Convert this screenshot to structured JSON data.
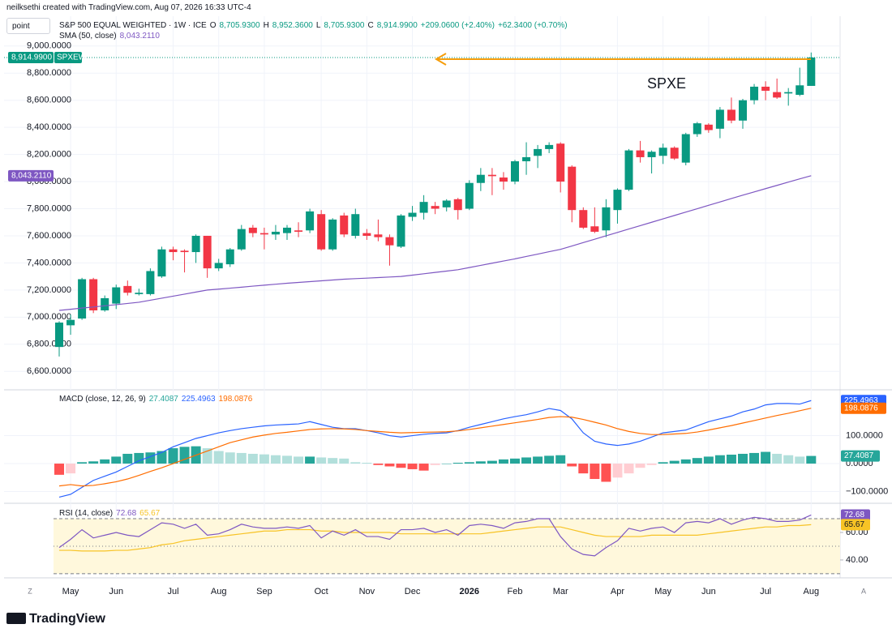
{
  "header": {
    "credit": "neilksethi created with TradingView.com, Aug 07, 2026 16:33 UTC-4",
    "button": "point",
    "logo": "TradingView",
    "left_corner": "Z",
    "right_corner": "A"
  },
  "chart_data": [
    {
      "type": "candlestick",
      "title": "S&P 500 EQUAL WEIGHTED · 1W · ICE",
      "symbol": "SPXEW",
      "annotation": "SPXE",
      "legend": [
        {
          "label": "O",
          "value": "8,705.9300"
        },
        {
          "label": "H",
          "value": "8,952.3600"
        },
        {
          "label": "L",
          "value": "8,705.9300"
        },
        {
          "label": "C",
          "value": "8,914.9900"
        },
        {
          "label": "",
          "value": "+209.0600 (+2.40%)"
        },
        {
          "label": "",
          "value": "+62.3400 (+0.70%)"
        }
      ],
      "categories": [
        null,
        "May",
        null,
        null,
        null,
        "Jun",
        null,
        null,
        null,
        null,
        "Jul",
        null,
        null,
        null,
        "Aug",
        null,
        null,
        null,
        "Sep",
        null,
        null,
        null,
        null,
        "Oct",
        null,
        null,
        null,
        "Nov",
        null,
        null,
        null,
        "Dec",
        null,
        null,
        null,
        null,
        "2026",
        null,
        null,
        null,
        "Feb",
        null,
        null,
        null,
        "Mar",
        null,
        null,
        null,
        null,
        "Apr",
        null,
        null,
        null,
        "May",
        null,
        null,
        null,
        "Jun",
        null,
        null,
        null,
        null,
        "Jul",
        null,
        null,
        null,
        "Aug"
      ],
      "open": [
        6780,
        6940,
        6990,
        7280,
        7050,
        7100,
        7230,
        7170,
        7170,
        7300,
        7500,
        7490,
        7480,
        7600,
        7360,
        7390,
        7500,
        7660,
        7620,
        7610,
        7620,
        7640,
        7640,
        7760,
        7500,
        7750,
        7600,
        7620,
        7610,
        7590,
        7520,
        7740,
        7770,
        7820,
        7810,
        7870,
        7800,
        7990,
        8050,
        8030,
        8000,
        8150,
        8190,
        8240,
        8280,
        8110,
        7790,
        7670,
        7640,
        7790,
        7940,
        8230,
        8180,
        8190,
        8250,
        8140,
        8350,
        8420,
        8390,
        8530,
        8450,
        8600,
        8700,
        8660,
        8650,
        8640,
        8705.93
      ],
      "high": [
        6970,
        7020,
        7290,
        7290,
        7160,
        7240,
        7270,
        7210,
        7360,
        7520,
        7520,
        7500,
        7610,
        7600,
        7430,
        7510,
        7680,
        7680,
        7660,
        7680,
        7680,
        7700,
        7800,
        7790,
        7730,
        7770,
        7800,
        7650,
        7720,
        7610,
        7760,
        7820,
        7900,
        7850,
        7870,
        7880,
        8010,
        8100,
        8100,
        8070,
        8160,
        8290,
        8270,
        8290,
        8290,
        8120,
        7810,
        7810,
        7870,
        7950,
        8240,
        8300,
        8230,
        8280,
        8260,
        8360,
        8440,
        8430,
        8550,
        8620,
        8610,
        8720,
        8740,
        8760,
        8690,
        8840,
        8952.36
      ],
      "low": [
        6710,
        6870,
        6980,
        7030,
        7040,
        7060,
        7160,
        7160,
        7160,
        7290,
        7420,
        7330,
        7400,
        7290,
        7340,
        7370,
        7490,
        7590,
        7500,
        7570,
        7570,
        7590,
        7620,
        7490,
        7490,
        7590,
        7580,
        7570,
        7560,
        7380,
        7510,
        7710,
        7720,
        7760,
        7780,
        7720,
        7790,
        7930,
        7900,
        7940,
        7980,
        8050,
        8100,
        8210,
        7920,
        7700,
        7650,
        7620,
        7590,
        7690,
        7930,
        8140,
        8060,
        8130,
        8160,
        8120,
        8330,
        8360,
        8320,
        8430,
        8390,
        8570,
        8600,
        8610,
        8560,
        8630,
        8705.93
      ],
      "close": [
        6960,
        6980,
        7280,
        7050,
        7140,
        7220,
        7180,
        7180,
        7340,
        7500,
        7480,
        7480,
        7600,
        7360,
        7400,
        7500,
        7650,
        7620,
        7610,
        7630,
        7660,
        7630,
        7780,
        7500,
        7720,
        7610,
        7760,
        7600,
        7590,
        7530,
        7750,
        7770,
        7850,
        7800,
        7860,
        7790,
        7990,
        8050,
        8040,
        8000,
        8150,
        8180,
        8240,
        8270,
        8000,
        7790,
        7660,
        7630,
        7810,
        7940,
        8230,
        8180,
        8220,
        8250,
        8170,
        8350,
        8430,
        8380,
        8530,
        8450,
        8600,
        8700,
        8670,
        8620,
        8660,
        8710,
        8914.99
      ],
      "up_color": "#089981",
      "down_color": "#f23645",
      "series": [
        {
          "name": "SMA (50, close)",
          "label": "8,043.2110",
          "color": "#7e57c2",
          "values": [
            7050,
            7058,
            7067,
            7075,
            7084,
            7092,
            7101,
            7110,
            7125,
            7140,
            7155,
            7170,
            7185,
            7200,
            7207,
            7214,
            7221,
            7229,
            7236,
            7243,
            7250,
            7256,
            7262,
            7268,
            7274,
            7280,
            7284,
            7288,
            7292,
            7296,
            7300,
            7310,
            7320,
            7330,
            7340,
            7350,
            7366,
            7382,
            7398,
            7414,
            7430,
            7448,
            7465,
            7483,
            7500,
            7525,
            7550,
            7575,
            7600,
            7625,
            7650,
            7675,
            7700,
            7725,
            7750,
            7775,
            7800,
            7825,
            7850,
            7875,
            7900,
            7924,
            7948,
            7972,
            7996,
            8020,
            8043.211
          ]
        }
      ],
      "ylim": [
        6470,
        9190
      ],
      "yticks": [
        {
          "value": 6600,
          "label": "6,600.0000"
        },
        {
          "value": 6800,
          "label": "6,800.0000"
        },
        {
          "value": 7000,
          "label": "7,000.0000"
        },
        {
          "value": 7200,
          "label": "7,200.0000"
        },
        {
          "value": 7400,
          "label": "7,400.0000"
        },
        {
          "value": 7600,
          "label": "7,600.0000"
        },
        {
          "value": 7800,
          "label": "7,800.0000"
        },
        {
          "value": 8000,
          "label": "8,000.0000"
        },
        {
          "value": 8200,
          "label": "8,200.0000"
        },
        {
          "value": 8400,
          "label": "8,400.0000"
        },
        {
          "value": 8600,
          "label": "8,600.0000"
        },
        {
          "value": 8800,
          "label": "8,800.0000"
        },
        {
          "value": 9000,
          "label": "9,000.0000"
        }
      ],
      "grid": true
    },
    {
      "type": "macd",
      "title": "MACD (close, 12, 26, 9)",
      "histogram": {
        "label": "27.4087",
        "colors": [
          "#26a69a",
          "#b2dfdb",
          "#ff5252",
          "#ffcdd2"
        ],
        "values": [
          -40,
          -35,
          5,
          8,
          15,
          25,
          35,
          38,
          40,
          45,
          55,
          60,
          62,
          55,
          45,
          40,
          38,
          35,
          33,
          30,
          28,
          25,
          25,
          22,
          20,
          18,
          5,
          3,
          -5,
          -10,
          -15,
          -20,
          -25,
          -5,
          0,
          3,
          5,
          8,
          10,
          15,
          18,
          22,
          25,
          28,
          30,
          -10,
          -35,
          -55,
          -65,
          -50,
          -35,
          -15,
          -5,
          5,
          10,
          15,
          20,
          25,
          30,
          32,
          35,
          38,
          42,
          35,
          30,
          25,
          27.4087
        ]
      },
      "series": [
        {
          "label": "225.4963",
          "color": "#2962ff",
          "values": [
            -120,
            -110,
            -85,
            -60,
            -45,
            -30,
            -10,
            10,
            25,
            40,
            60,
            75,
            90,
            100,
            110,
            118,
            125,
            130,
            135,
            138,
            140,
            142,
            150,
            140,
            130,
            125,
            125,
            118,
            110,
            100,
            95,
            100,
            105,
            108,
            110,
            118,
            130,
            140,
            150,
            160,
            168,
            175,
            185,
            197,
            190,
            160,
            110,
            80,
            70,
            65,
            70,
            80,
            95,
            110,
            115,
            120,
            135,
            150,
            160,
            170,
            185,
            195,
            210,
            215,
            215,
            213,
            225.4963
          ]
        },
        {
          "label": "198.0876",
          "color": "#ff6d00",
          "values": [
            -80,
            -75,
            -80,
            -78,
            -72,
            -65,
            -55,
            -42,
            -28,
            -15,
            0,
            15,
            30,
            45,
            60,
            75,
            85,
            95,
            102,
            108,
            112,
            117,
            122,
            124,
            125,
            124,
            122,
            118,
            115,
            112,
            110,
            111,
            112,
            113,
            114,
            117,
            122,
            128,
            134,
            140,
            146,
            152,
            158,
            165,
            168,
            166,
            158,
            148,
            138,
            125,
            115,
            108,
            104,
            104,
            106,
            108,
            113,
            120,
            128,
            136,
            145,
            154,
            163,
            172,
            180,
            189,
            198.0876
          ]
        }
      ],
      "ylim": [
        -139,
        261
      ],
      "yticks": [
        {
          "value": -100,
          "label": "−100.0000"
        },
        {
          "value": 0,
          "label": "0.0000"
        },
        {
          "value": 100,
          "label": "100.0000"
        }
      ]
    },
    {
      "type": "rsi",
      "title": "RSI (14, close)",
      "bands": [
        70,
        50,
        30
      ],
      "band_color": "#fff8dc",
      "series": [
        {
          "label": "72.68",
          "color": "#7e57c2",
          "values": [
            49,
            55,
            62,
            56,
            58,
            60,
            58,
            57,
            62,
            67,
            66,
            63,
            66,
            58,
            59,
            62,
            66,
            64,
            63,
            63,
            64,
            63,
            65,
            56,
            61,
            58,
            62,
            57,
            57,
            55,
            62,
            62,
            63,
            60,
            62,
            58,
            65,
            66,
            65,
            63,
            67,
            68,
            70,
            70,
            57,
            48,
            44,
            43,
            49,
            54,
            63,
            61,
            63,
            64,
            60,
            67,
            68,
            67,
            70,
            66,
            69,
            71,
            70,
            68,
            68,
            69,
            72.68
          ]
        },
        {
          "label": "65.67",
          "color": "#f7c325",
          "values": [
            47,
            47,
            46.5,
            46.5,
            46.5,
            47,
            47,
            48,
            49,
            51,
            52,
            54,
            55,
            56,
            57,
            58,
            59,
            60,
            61,
            61,
            62,
            62,
            62,
            61,
            61,
            60,
            60,
            60,
            60,
            60,
            59,
            59,
            59,
            59,
            59,
            59,
            59,
            59,
            60,
            61,
            62,
            63,
            64,
            64,
            64,
            62,
            60,
            58,
            57,
            57,
            57,
            57,
            58,
            58,
            58,
            58,
            58,
            59,
            60,
            61,
            62,
            63,
            64,
            64,
            65,
            65,
            65.67
          ]
        }
      ],
      "ylim": [
        27.6,
        80.6
      ],
      "yticks": [
        {
          "value": 40,
          "label": "40.00"
        },
        {
          "value": 60,
          "label": "60.00"
        }
      ]
    }
  ]
}
